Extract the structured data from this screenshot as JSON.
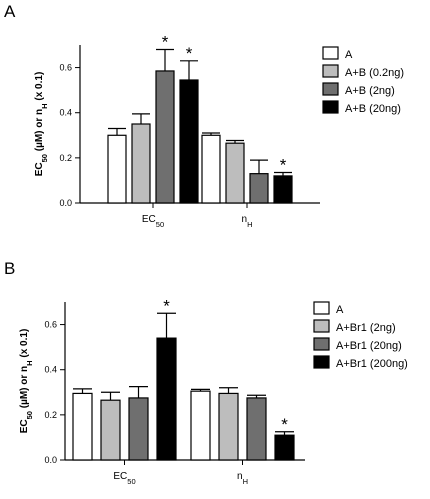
{
  "chart_data": [
    {
      "panel": "A",
      "type": "bar",
      "title": "",
      "xlabel": "",
      "ylabel": "EC50 (µM) or nH (x 0.1)",
      "ylim": [
        0,
        0.7
      ],
      "yticks": [
        "0.0",
        "0.2",
        "0.4",
        "0.6"
      ],
      "categories": [
        "EC50",
        "nH"
      ],
      "legend": {
        "placement": "right"
      },
      "series": [
        {
          "name": "A",
          "color": "#ffffff",
          "values": [
            0.3,
            0.3
          ],
          "errors": [
            0.03,
            0.01
          ]
        },
        {
          "name": "A+B (0.2ng)",
          "color": "#bdbdbd",
          "values": [
            0.35,
            0.265
          ],
          "errors": [
            0.045,
            0.012
          ]
        },
        {
          "name": "A+B (2ng)",
          "color": "#6f6f6f",
          "values": [
            0.585,
            0.13
          ],
          "errors": [
            0.095,
            0.06
          ]
        },
        {
          "name": "A+B (20ng)",
          "color": "#000000",
          "values": [
            0.545,
            0.12
          ],
          "errors": [
            0.085,
            0.015
          ]
        }
      ],
      "significance": [
        {
          "series": 2,
          "category": 0,
          "label": "*"
        },
        {
          "series": 3,
          "category": 0,
          "label": "*"
        },
        {
          "series": 3,
          "category": 1,
          "label": "*"
        }
      ]
    },
    {
      "panel": "B",
      "type": "bar",
      "title": "",
      "xlabel": "",
      "ylabel": "EC50 (µM) or nH (x 0.1)",
      "ylim": [
        0,
        0.7
      ],
      "yticks": [
        "0.0",
        "0.2",
        "0.4",
        "0.6"
      ],
      "categories": [
        "EC50",
        "nH"
      ],
      "legend": {
        "placement": "right"
      },
      "series": [
        {
          "name": "A",
          "color": "#ffffff",
          "values": [
            0.295,
            0.305
          ],
          "errors": [
            0.02,
            0.008
          ]
        },
        {
          "name": "A+Br1 (2ng)",
          "color": "#bdbdbd",
          "values": [
            0.265,
            0.295
          ],
          "errors": [
            0.035,
            0.025
          ]
        },
        {
          "name": "A+Br1 (20ng)",
          "color": "#6f6f6f",
          "values": [
            0.275,
            0.275
          ],
          "errors": [
            0.05,
            0.012
          ]
        },
        {
          "name": "A+Br1 (200ng)",
          "color": "#000000",
          "values": [
            0.54,
            0.11
          ],
          "errors": [
            0.11,
            0.015
          ]
        }
      ],
      "significance": [
        {
          "series": 3,
          "category": 0,
          "label": "*"
        },
        {
          "series": 3,
          "category": 1,
          "label": "*"
        }
      ]
    }
  ]
}
